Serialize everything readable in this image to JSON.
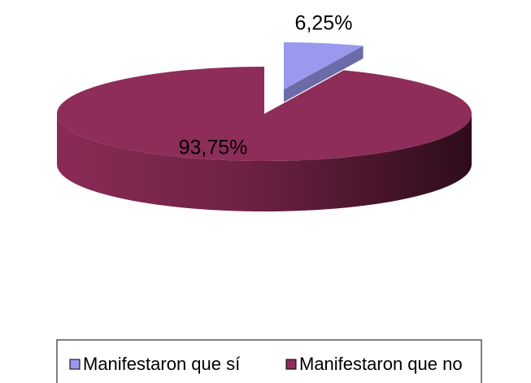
{
  "chart_data": {
    "type": "pie",
    "categories": [
      "Manifestaron que sí",
      "Manifestaron que no"
    ],
    "values": [
      6.25,
      93.75
    ],
    "value_labels": [
      "6,25%",
      "93,75%"
    ],
    "colors": [
      "#9999ee",
      "#8e2d5a"
    ],
    "legend": "bottom"
  }
}
